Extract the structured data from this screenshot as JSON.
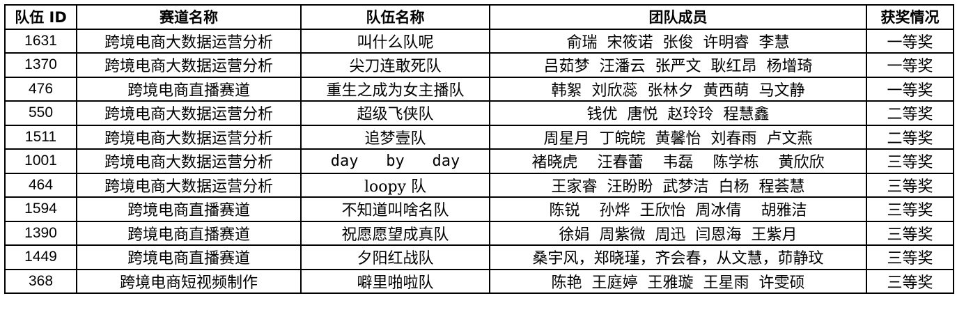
{
  "table": {
    "headers": [
      "队伍 ID",
      "赛道名称",
      "队伍名称",
      "团队成员",
      "获奖情况"
    ],
    "rows": [
      [
        "1631",
        "跨境电商大数据运营分析",
        "叫什么队呢",
        "俞瑞  宋筱诺  张俊  许明睿  李慧",
        "一等奖"
      ],
      [
        "1370",
        "跨境电商大数据运营分析",
        "尖刀连敢死队",
        "吕茹梦  汪潘云  张严文  耿红昂  杨增琦",
        "一等奖"
      ],
      [
        "476",
        "跨境电商直播赛道",
        "重生之成为女主播队",
        "韩絮  刘欣蕊  张林夕  黄西萌  马文静",
        "一等奖"
      ],
      [
        "550",
        "跨境电商大数据运营分析",
        "超级飞侠队",
        "钱优  唐悦  赵玲玲  程慧鑫",
        "二等奖"
      ],
      [
        "1511",
        "跨境电商大数据运营分析",
        "追梦壹队",
        "周星月  丁皖皖  黄馨怡  刘春雨  卢文燕",
        "二等奖"
      ],
      [
        "1001",
        "跨境电商大数据运营分析",
        "day   by   day",
        "褚晓虎    汪春蕾    韦磊    陈学栋    黄欣欣",
        "三等奖"
      ],
      [
        "464",
        "跨境电商大数据运营分析",
        "loopy 队",
        "王家睿  汪盼盼  武梦洁  白杨  程荟慧",
        "三等奖"
      ],
      [
        "1594",
        "跨境电商直播赛道",
        "不知道叫啥名队",
        "陈锐    孙烨  王欣怡  周冰倩    胡雅洁",
        "三等奖"
      ],
      [
        "1390",
        "跨境电商直播赛道",
        "祝愿愿望成真队",
        "徐娟  周紫微  周迅  闫恩海  王紫月",
        "三等奖"
      ],
      [
        "1449",
        "跨境电商直播赛道",
        "夕阳红战队",
        "桑宇风，郑晓瑾，齐会春，从文慧，茆静玟",
        "三等奖"
      ],
      [
        "368",
        "跨境电商短视频制作",
        "噼里啪啦队",
        "陈艳  王庭婷  王雅璇  王星雨  许雯硕",
        "三等奖"
      ]
    ]
  }
}
